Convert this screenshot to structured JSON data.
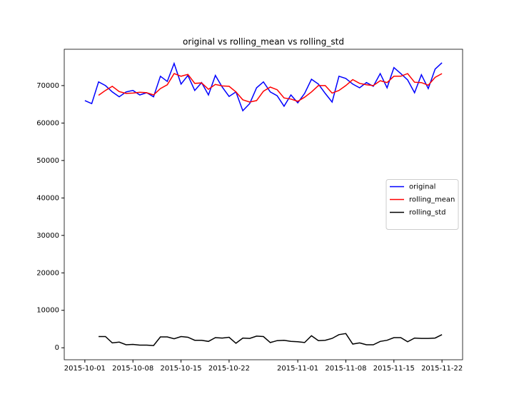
{
  "chart_data": {
    "type": "line",
    "title": "original vs rolling_mean vs rolling_std",
    "x": [
      "2015-10-01",
      "2015-10-02",
      "2015-10-03",
      "2015-10-04",
      "2015-10-05",
      "2015-10-06",
      "2015-10-07",
      "2015-10-08",
      "2015-10-09",
      "2015-10-10",
      "2015-10-11",
      "2015-10-12",
      "2015-10-13",
      "2015-10-14",
      "2015-10-15",
      "2015-10-16",
      "2015-10-17",
      "2015-10-18",
      "2015-10-19",
      "2015-10-20",
      "2015-10-21",
      "2015-10-22",
      "2015-10-23",
      "2015-10-24",
      "2015-10-25",
      "2015-10-26",
      "2015-10-27",
      "2015-10-28",
      "2015-10-29",
      "2015-10-30",
      "2015-10-31",
      "2015-11-01",
      "2015-11-02",
      "2015-11-03",
      "2015-11-04",
      "2015-11-05",
      "2015-11-06",
      "2015-11-07",
      "2015-11-08",
      "2015-11-09",
      "2015-11-10",
      "2015-11-11",
      "2015-11-12",
      "2015-11-13",
      "2015-11-14",
      "2015-11-15",
      "2015-11-16",
      "2015-11-17",
      "2015-11-18",
      "2015-11-19",
      "2015-11-20",
      "2015-11-21",
      "2015-11-22"
    ],
    "series": [
      {
        "name": "original",
        "color": "#0000ff",
        "values": [
          66000,
          65200,
          71000,
          70000,
          68300,
          67000,
          68300,
          68700,
          67500,
          68100,
          67000,
          72500,
          71100,
          75900,
          70400,
          72700,
          68700,
          70800,
          67500,
          72700,
          69600,
          67100,
          68300,
          63300,
          65200,
          69400,
          71000,
          68300,
          67300,
          64500,
          67500,
          65400,
          67900,
          71700,
          70400,
          67900,
          65600,
          72500,
          71900,
          70400,
          69400,
          70800,
          69800,
          73200,
          69400,
          74800,
          73200,
          71500,
          68100,
          72900,
          69200,
          74400,
          76100
        ]
      },
      {
        "name": "rolling_mean",
        "color": "#ff0000",
        "values": [
          null,
          null,
          67400,
          68700,
          69800,
          68400,
          67900,
          68000,
          68200,
          68100,
          67500,
          69200,
          70200,
          73200,
          72500,
          73000,
          70600,
          70700,
          69000,
          70300,
          69900,
          69800,
          68300,
          66200,
          65600,
          66000,
          68500,
          69600,
          68900,
          66700,
          66400,
          65800,
          66900,
          68300,
          70000,
          70000,
          68000,
          68700,
          70000,
          71600,
          70600,
          70200,
          70000,
          71300,
          70800,
          72500,
          72500,
          73200,
          70900,
          70800,
          70100,
          72200,
          73200
        ]
      },
      {
        "name": "rolling_std",
        "color": "#000000",
        "values": [
          null,
          null,
          3000,
          3000,
          1300,
          1500,
          800,
          900,
          700,
          700,
          600,
          2900,
          2900,
          2400,
          3000,
          2800,
          2000,
          2000,
          1700,
          2700,
          2600,
          2800,
          1200,
          2600,
          2500,
          3100,
          3000,
          1400,
          1900,
          2000,
          1700,
          1600,
          1400,
          3200,
          1900,
          2000,
          2500,
          3500,
          3800,
          1000,
          1300,
          800,
          800,
          1700,
          2000,
          2700,
          2700,
          1600,
          2600,
          2500,
          2500,
          2600,
          3500
        ]
      }
    ],
    "xlim": [
      "2015-09-28",
      "2015-11-25"
    ],
    "xticks": [
      "2015-10-01",
      "2015-10-08",
      "2015-10-15",
      "2015-10-22",
      "2015-11-01",
      "2015-11-08",
      "2015-11-15",
      "2015-11-22"
    ],
    "ylim": [
      -3200,
      79700
    ],
    "yticks": [
      0,
      10000,
      20000,
      30000,
      40000,
      50000,
      60000,
      70000
    ],
    "legend": "center right",
    "grid": false
  }
}
